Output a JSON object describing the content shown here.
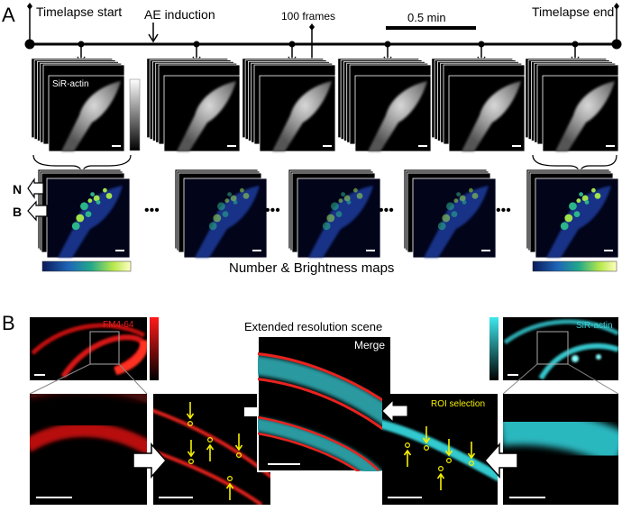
{
  "panel_a": {
    "letter": "A",
    "timeline": {
      "start_label": "Timelapse start",
      "induction_label": "AE induction",
      "frames_label": "100 frames",
      "scale_label": "0.5 min",
      "end_label": "Timelapse end"
    },
    "channel_label": "SiR-actin",
    "side_labels": {
      "n": "N",
      "b": "B"
    },
    "ellipsis": "•••",
    "maps_caption": "Number & Brightness maps",
    "stack_count": 6,
    "map_count": 5
  },
  "panel_b": {
    "letter": "B",
    "left_channel": "FM4-64",
    "right_channel": "SiR-actin",
    "center_title": "Extended resolution  scene",
    "merge_label": "Merge",
    "roi_label": "ROI selection"
  },
  "colors": {
    "fm4_red": "#e8231f",
    "sir_cyan": "#33c9cf",
    "roi_yellow": "#f5f000",
    "arrow_gray": "#9a9a9a"
  }
}
